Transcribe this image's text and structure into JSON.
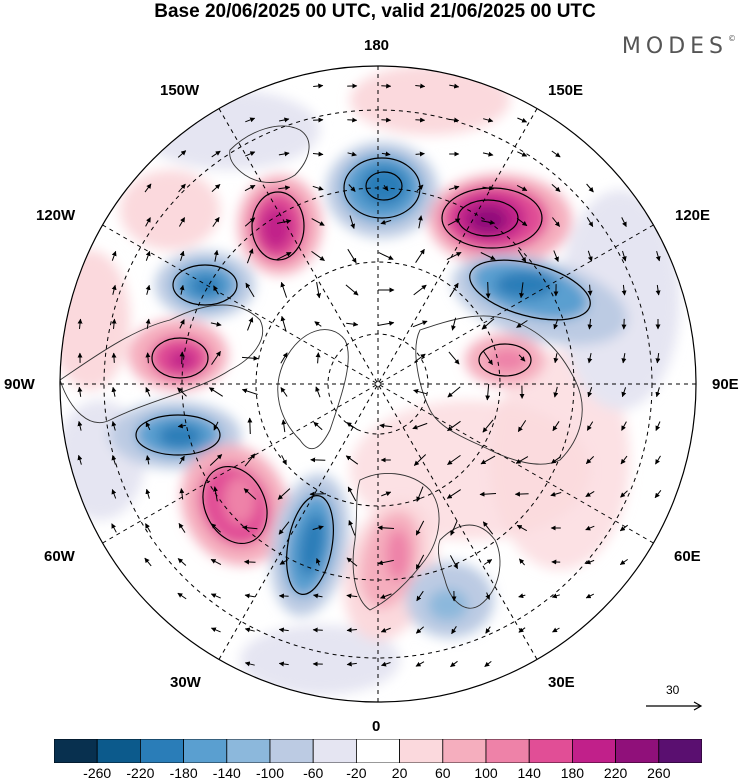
{
  "title": "Base 20/06/2025 00 UTC, valid 21/06/2025 00 UTC",
  "brand": "MODES",
  "brand_mark": "©",
  "longitude_labels": {
    "lon_180": "180",
    "lon_150E": "150E",
    "lon_120E": "120E",
    "lon_90E": "90E",
    "lon_60E": "60E",
    "lon_30E": "30E",
    "lon_0": "0",
    "lon_30W": "30W",
    "lon_60W": "60W",
    "lon_90W": "90W",
    "lon_120W": "120W",
    "lon_150W": "150W"
  },
  "reference_vector_label": "30",
  "colorbar": {
    "colors": [
      "#08304f",
      "#0c5a8c",
      "#2a7db8",
      "#5a9fd0",
      "#8cb8dc",
      "#bccbe3",
      "#e5e5f2",
      "#ffffff",
      "#fbd9dd",
      "#f5aebe",
      "#ee82a8",
      "#e14e96",
      "#c1208a",
      "#90107a",
      "#5a0f70"
    ],
    "ticks": [
      "-260",
      "-220",
      "-180",
      "-140",
      "-100",
      "-60",
      "-20",
      "20",
      "60",
      "100",
      "140",
      "180",
      "220",
      "260"
    ]
  },
  "anomaly_centers": [
    {
      "sign": "neg",
      "lon": 175,
      "lat": 55
    },
    {
      "sign": "pos",
      "lon": 135,
      "lat": 55
    },
    {
      "sign": "neg",
      "lon": 110,
      "lat": 58
    },
    {
      "sign": "pos",
      "lon": 100,
      "lat": 70
    },
    {
      "sign": "pos",
      "lon": -140,
      "lat": 55
    },
    {
      "sign": "neg",
      "lon": -115,
      "lat": 52
    },
    {
      "sign": "pos",
      "lon": -95,
      "lat": 52
    },
    {
      "sign": "neg",
      "lon": -75,
      "lat": 48
    },
    {
      "sign": "pos",
      "lon": -50,
      "lat": 50
    },
    {
      "sign": "neg",
      "lon": -25,
      "lat": 52
    },
    {
      "sign": "pos",
      "lon": 5,
      "lat": 55
    },
    {
      "sign": "neg",
      "lon": 30,
      "lat": 45
    }
  ]
}
